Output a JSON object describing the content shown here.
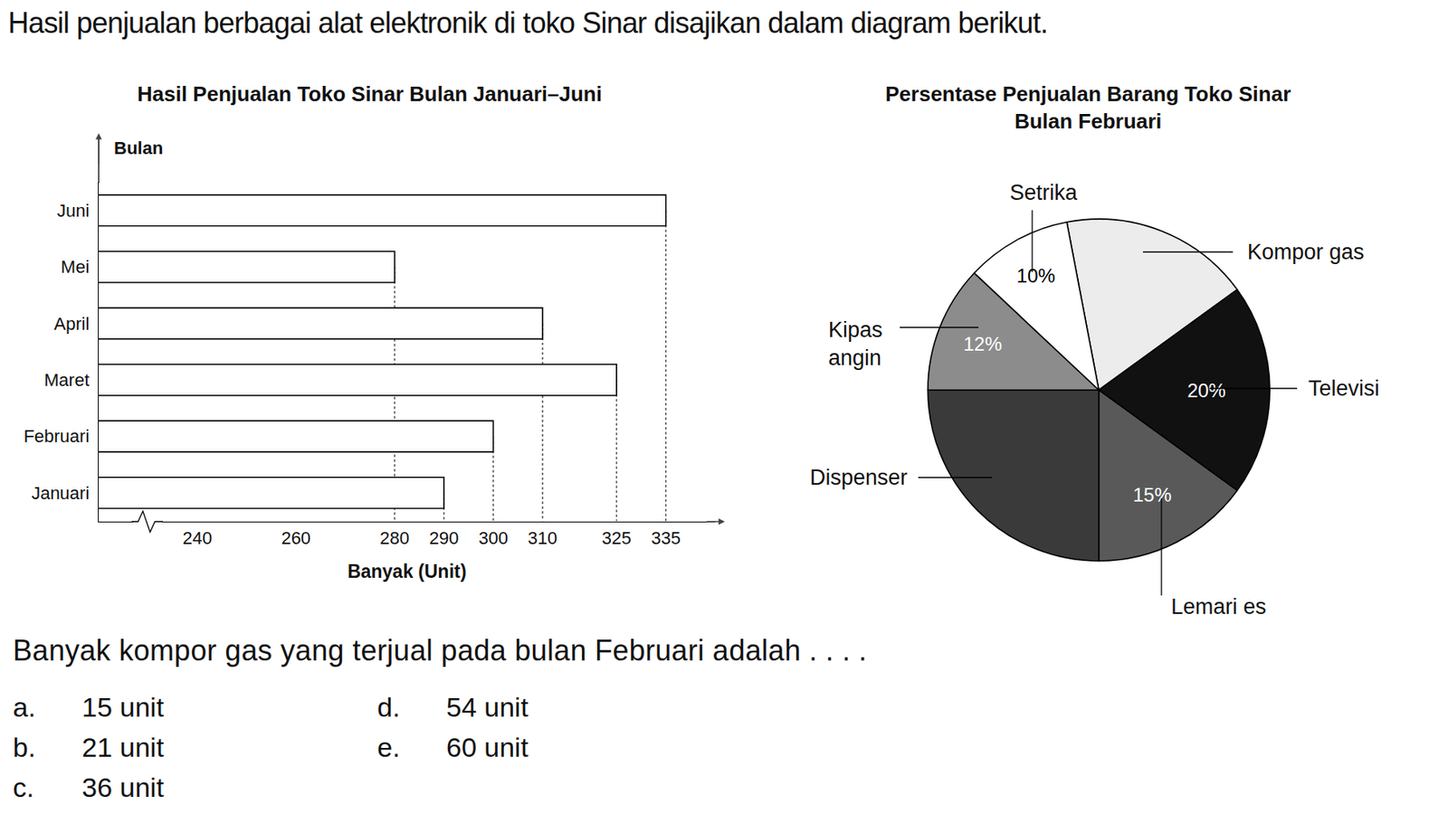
{
  "header": {
    "text": "Hasil penjualan berbagai alat elektronik di toko Sinar disajikan dalam diagram berikut."
  },
  "chart_data": [
    {
      "type": "bar",
      "title": "Hasil Penjualan Toko Sinar Bulan Januari–Juni",
      "orientation": "horizontal",
      "categories": [
        "Januari",
        "Februari",
        "Maret",
        "April",
        "Mei",
        "Juni"
      ],
      "values": [
        290,
        300,
        325,
        310,
        280,
        335
      ],
      "x_label": "Banyak (Unit)",
      "y_label": "Bulan",
      "xlim": [
        220,
        345
      ],
      "xticks": [
        240,
        260,
        280,
        290,
        300,
        310,
        325,
        335
      ],
      "color": "#ffffff",
      "grid": false
    },
    {
      "type": "pie",
      "title": "Persentase Penjualan Barang Toko Sinar\nBulan Februari",
      "labels": [
        "Kompor gas",
        "Televisi",
        "Lemari es",
        "Dispenser",
        "Kipas angin",
        "Setrika"
      ],
      "values": [
        18,
        20,
        15,
        25,
        12,
        10
      ],
      "value_labels": [
        null,
        "20%",
        "15%",
        null,
        "12%",
        "10%"
      ],
      "colors": [
        "#ececec",
        "#111111",
        "#595959",
        "#3a3a3a",
        "#8c8c8c",
        "#ffffff"
      ]
    }
  ],
  "question": {
    "text": "Banyak kompor gas yang terjual pada bulan Februari adalah . . . .",
    "options": [
      {
        "letter": "a.",
        "text": "15 unit"
      },
      {
        "letter": "b.",
        "text": "21 unit"
      },
      {
        "letter": "c.",
        "text": "36 unit"
      },
      {
        "letter": "d.",
        "text": "54 unit"
      },
      {
        "letter": "e.",
        "text": "60 unit"
      }
    ]
  }
}
